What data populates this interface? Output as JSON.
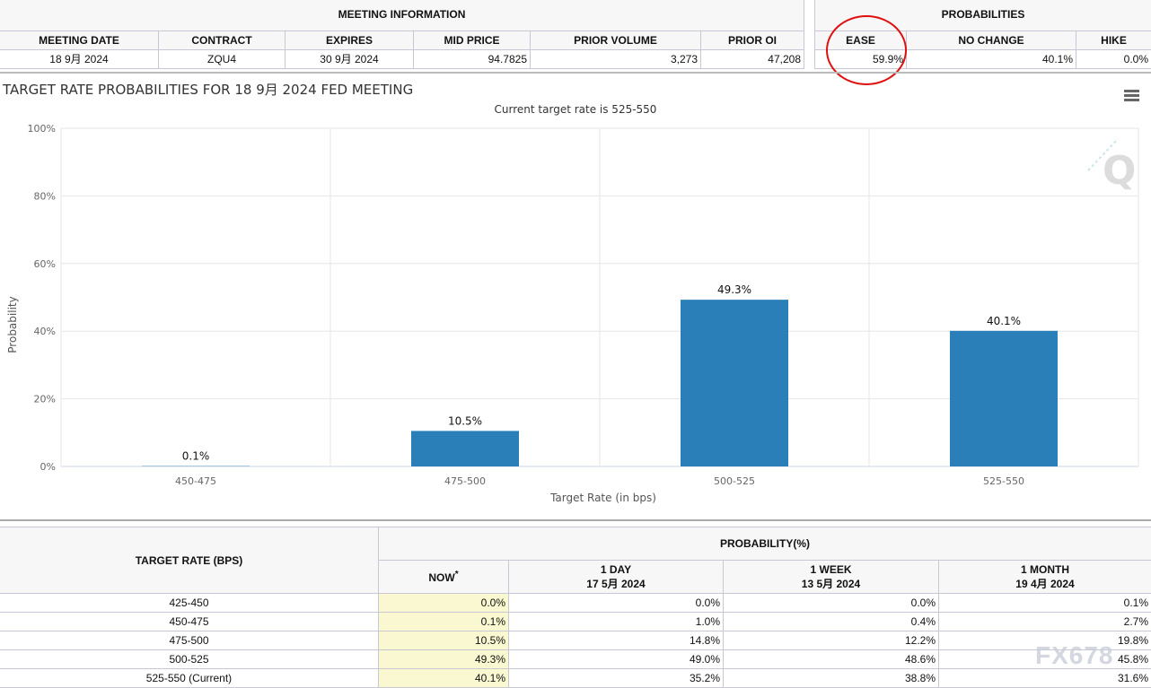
{
  "meeting_info": {
    "title": "MEETING INFORMATION",
    "headers": [
      "MEETING DATE",
      "CONTRACT",
      "EXPIRES",
      "MID PRICE",
      "PRIOR VOLUME",
      "PRIOR OI"
    ],
    "values": [
      "18 9月 2024",
      "ZQU4",
      "30 9月 2024",
      "94.7825",
      "3,273",
      "47,208"
    ]
  },
  "probabilities": {
    "title": "PROBABILITIES",
    "headers": [
      "EASE",
      "NO CHANGE",
      "HIKE"
    ],
    "values": [
      "59.9%",
      "40.1%",
      "0.0%"
    ]
  },
  "chart_data": {
    "type": "bar",
    "title": "TARGET RATE PROBABILITIES FOR 18 9月 2024 FED MEETING",
    "subtitle": "Current target rate is 525-550",
    "xlabel": "Target Rate (in bps)",
    "ylabel": "Probability",
    "categories": [
      "450-475",
      "475-500",
      "500-525",
      "525-550"
    ],
    "values": [
      0.1,
      10.5,
      49.3,
      40.1
    ],
    "labels": [
      "0.1%",
      "10.5%",
      "49.3%",
      "40.1%"
    ],
    "ylim": [
      0,
      100
    ],
    "yticks": [
      "0%",
      "20%",
      "40%",
      "60%",
      "80%",
      "100%"
    ],
    "grid": true,
    "color": "#2a7fb8"
  },
  "prob_table": {
    "h_target": "TARGET RATE (BPS)",
    "h_prob": "PROBABILITY(%)",
    "cols": [
      {
        "label": "NOW",
        "sup": "*",
        "date": ""
      },
      {
        "label": "1 DAY",
        "date": "17 5月 2024"
      },
      {
        "label": "1 WEEK",
        "date": "13 5月 2024"
      },
      {
        "label": "1 MONTH",
        "date": "19 4月 2024"
      }
    ],
    "rows": [
      [
        "425-450",
        "0.0%",
        "0.0%",
        "0.0%",
        "0.1%"
      ],
      [
        "450-475",
        "0.1%",
        "1.0%",
        "0.4%",
        "2.7%"
      ],
      [
        "475-500",
        "10.5%",
        "14.8%",
        "12.2%",
        "19.8%"
      ],
      [
        "500-525",
        "49.3%",
        "49.0%",
        "48.6%",
        "45.8%"
      ],
      [
        "525-550 (Current)",
        "40.1%",
        "35.2%",
        "38.8%",
        "31.6%"
      ]
    ]
  },
  "watermark": "FX678"
}
